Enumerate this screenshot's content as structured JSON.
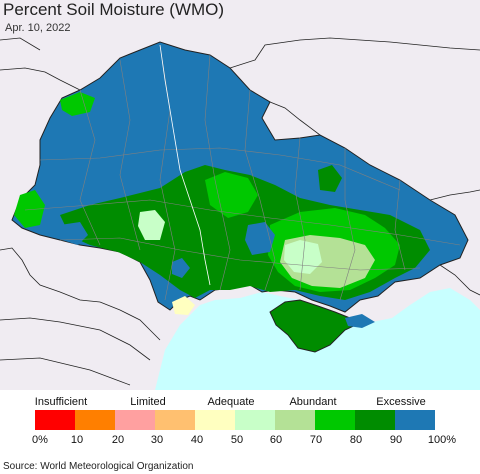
{
  "header": {
    "title": "Percent Soil Moisture (WMO)",
    "date": "Apr. 10, 2022"
  },
  "legend": {
    "categories": [
      "Insufficient",
      "Limited",
      "Adequate",
      "Abundant",
      "Excessive"
    ],
    "ticks": [
      "0%",
      "10",
      "20",
      "30",
      "40",
      "50",
      "60",
      "70",
      "80",
      "90",
      "100%"
    ],
    "colors": [
      "#ff0000",
      "#ff7f00",
      "#ffa0a0",
      "#ffc070",
      "#ffffc0",
      "#c8ffc8",
      "#b4e196",
      "#00c800",
      "#008c00",
      "#1e78b4"
    ]
  },
  "map_colors": {
    "background_land": "#f0ecf2",
    "sea": "#c8ffff",
    "border": "#222222",
    "inner_border": "#808080"
  },
  "source": "Source: World Meteorological Organization"
}
